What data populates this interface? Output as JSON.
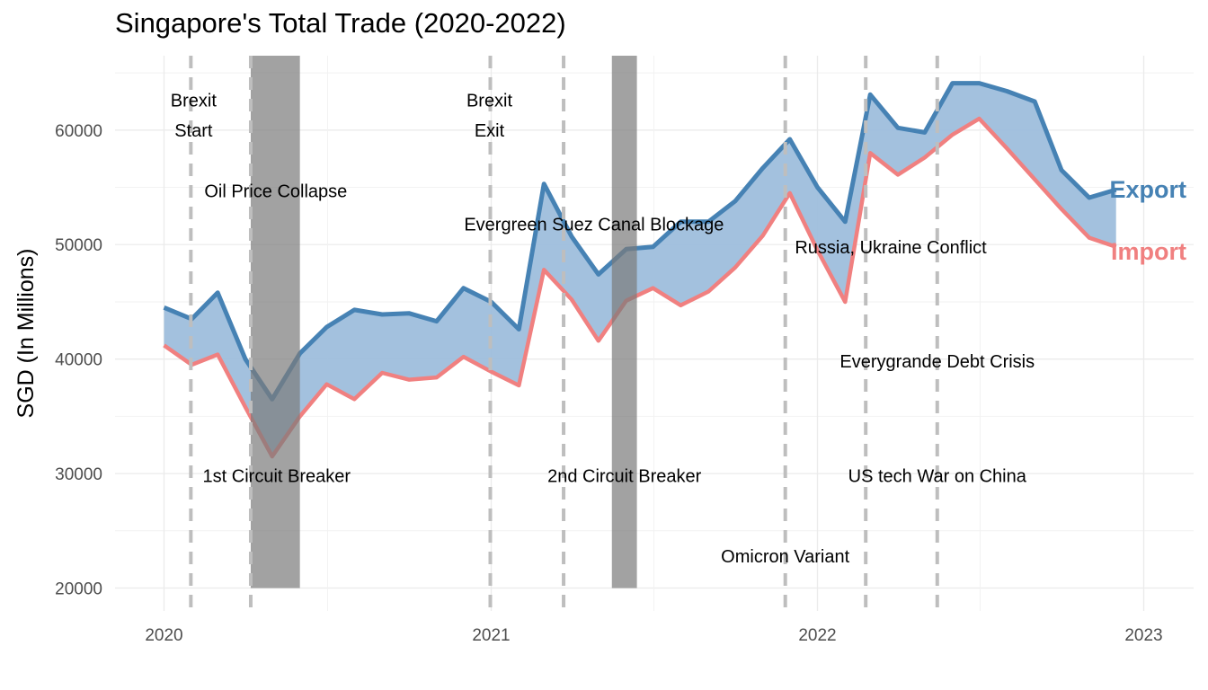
{
  "chart_data": {
    "type": "area",
    "title": "Singapore's Total Trade (2020-2022)",
    "xlabel": "",
    "ylabel": "SGD (In Millions)",
    "x_ticks": [
      "2020",
      "2021",
      "2022",
      "2023"
    ],
    "y_ticks": [
      20000,
      30000,
      40000,
      50000,
      60000
    ],
    "xlim": [
      "2019-11-15",
      "2023-02-15"
    ],
    "ylim": [
      18000,
      66500
    ],
    "grid": true,
    "colors": {
      "export": "#4682B4",
      "import": "#F08080",
      "fill": "#9EBEDC",
      "shade": "#A0A0A0",
      "vline": "#BEBEBE"
    },
    "x": [
      "2020-01",
      "2020-02",
      "2020-03",
      "2020-04",
      "2020-05",
      "2020-06",
      "2020-07",
      "2020-08",
      "2020-09",
      "2020-10",
      "2020-11",
      "2020-12",
      "2021-01",
      "2021-02",
      "2021-03",
      "2021-04",
      "2021-05",
      "2021-06",
      "2021-07",
      "2021-08",
      "2021-09",
      "2021-10",
      "2021-11",
      "2021-12",
      "2022-01",
      "2022-02",
      "2022-03",
      "2022-04",
      "2022-05",
      "2022-06",
      "2022-07",
      "2022-08",
      "2022-09",
      "2022-10",
      "2022-11",
      "2022-12"
    ],
    "series": [
      {
        "name": "Export",
        "values": [
          44500,
          43500,
          45800,
          40000,
          36500,
          40500,
          42800,
          44300,
          43900,
          44000,
          43300,
          46200,
          45000,
          42600,
          55300,
          50700,
          47400,
          49600,
          49800,
          52000,
          52000,
          53800,
          56700,
          59200,
          55000,
          52000,
          63100,
          60200,
          59800,
          64100,
          64100,
          63400,
          62500,
          56500,
          54100,
          54800
        ]
      },
      {
        "name": "Import",
        "values": [
          41200,
          39500,
          40400,
          35800,
          31500,
          35000,
          37800,
          36500,
          38800,
          38200,
          38400,
          40200,
          38900,
          37700,
          47800,
          45200,
          41600,
          45100,
          46200,
          44700,
          45900,
          48000,
          50800,
          54500,
          49500,
          45000,
          58000,
          56100,
          57600,
          59600,
          61000,
          58400,
          55700,
          53100,
          50600,
          49800
        ]
      }
    ],
    "shaded_periods": [
      {
        "start": "2020-04-07",
        "end": "2020-06-01"
      },
      {
        "start": "2021-05-16",
        "end": "2021-06-13"
      }
    ],
    "event_lines": [
      "2020-01-31",
      "2020-04-07",
      "2020-12-31",
      "2021-03-23",
      "2021-11-26",
      "2022-02-24",
      "2022-05-15"
    ],
    "annotations": [
      {
        "text": "Brexit",
        "x": "2020-02-03",
        "y": 62600
      },
      {
        "text": "Start",
        "x": "2020-02-03",
        "y": 60000
      },
      {
        "text": "Oil Price Collapse",
        "x": "2020-05-05",
        "y": 54700
      },
      {
        "text": "Brexit",
        "x": "2020-12-30",
        "y": 62600
      },
      {
        "text": "Exit",
        "x": "2020-12-30",
        "y": 60000
      },
      {
        "text": "Evergreen Suez Canal Blockage",
        "x": "2021-04-26",
        "y": 51800
      },
      {
        "text": "Russia, Ukraine Conflict",
        "x": "2022-03-24",
        "y": 49800
      },
      {
        "text": "Everygrande Debt Crisis",
        "x": "2022-05-15",
        "y": 39800
      },
      {
        "text": "1st Circuit Breaker",
        "x": "2020-05-06",
        "y": 29800
      },
      {
        "text": "2nd Circuit Breaker",
        "x": "2021-05-30",
        "y": 29800
      },
      {
        "text": "US tech War on China",
        "x": "2022-05-15",
        "y": 29800
      },
      {
        "text": "Omicron Variant",
        "x": "2021-11-26",
        "y": 22800
      }
    ]
  }
}
